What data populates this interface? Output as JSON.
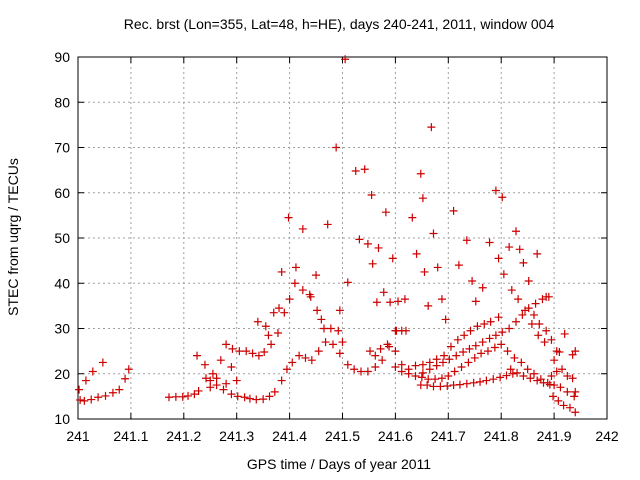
{
  "chart_data": {
    "type": "scatter",
    "title": "Rec. brst (Lon=355, Lat=48, h=HE), days 240-241, 2011, window 004",
    "xlabel": "GPS time / Days of year 2011",
    "ylabel": "STEC from uqrg / TECUs",
    "xlim": [
      241,
      242
    ],
    "ylim": [
      10,
      90
    ],
    "xticks": [
      "241",
      "241.1",
      "241.2",
      "241.3",
      "241.4",
      "241.5",
      "241.6",
      "241.7",
      "241.8",
      "241.9",
      "242"
    ],
    "yticks": [
      "10",
      "20",
      "30",
      "40",
      "50",
      "60",
      "70",
      "80",
      "90"
    ],
    "grid": true,
    "marker": "plus",
    "color": "#cc0000",
    "series": [
      {
        "points": [
          [
            241.002,
            16.5
          ],
          [
            241.004,
            14.2
          ],
          [
            241.012,
            14.0
          ],
          [
            241.015,
            18.5
          ],
          [
            241.025,
            14.3
          ],
          [
            241.028,
            20.5
          ],
          [
            241.038,
            14.8
          ],
          [
            241.047,
            22.5
          ],
          [
            241.052,
            15.1
          ],
          [
            241.066,
            15.8
          ],
          [
            241.078,
            16.5
          ],
          [
            241.089,
            18.9
          ],
          [
            241.096,
            21.0
          ],
          [
            241.172,
            14.8
          ],
          [
            241.185,
            14.9
          ],
          [
            241.198,
            14.9
          ],
          [
            241.208,
            15.1
          ],
          [
            241.22,
            15.5
          ],
          [
            241.225,
            24.0
          ],
          [
            241.228,
            16.2
          ],
          [
            241.24,
            22.0
          ],
          [
            241.25,
            18.5
          ],
          [
            241.255,
            20.0
          ],
          [
            241.262,
            17.5
          ],
          [
            241.27,
            23.0
          ],
          [
            241.28,
            17.8
          ],
          [
            241.29,
            21.5
          ],
          [
            241.3,
            18.5
          ],
          [
            241.242,
            19.0
          ],
          [
            241.25,
            17.0
          ],
          [
            241.262,
            19.0
          ],
          [
            241.275,
            16.5
          ],
          [
            241.29,
            15.5
          ],
          [
            241.302,
            15.0
          ],
          [
            241.315,
            14.8
          ],
          [
            241.325,
            14.5
          ],
          [
            241.337,
            14.3
          ],
          [
            241.35,
            14.4
          ],
          [
            241.362,
            15.0
          ],
          [
            241.372,
            16.0
          ],
          [
            241.385,
            18.5
          ],
          [
            241.395,
            21.0
          ],
          [
            241.405,
            22.5
          ],
          [
            241.418,
            24.0
          ],
          [
            241.43,
            23.5
          ],
          [
            241.442,
            23.0
          ],
          [
            241.455,
            25.0
          ],
          [
            241.468,
            27.0
          ],
          [
            241.482,
            26.5
          ],
          [
            241.495,
            24.5
          ],
          [
            241.51,
            22.0
          ],
          [
            241.522,
            21.0
          ],
          [
            241.535,
            20.5
          ],
          [
            241.548,
            20.5
          ],
          [
            241.562,
            21.5
          ],
          [
            241.575,
            23.0
          ],
          [
            241.588,
            26.0
          ],
          [
            241.6,
            29.5
          ],
          [
            241.28,
            26.5
          ],
          [
            241.292,
            25.5
          ],
          [
            241.305,
            25.0
          ],
          [
            241.318,
            25.0
          ],
          [
            241.33,
            24.5
          ],
          [
            241.342,
            24.0
          ],
          [
            241.352,
            24.8
          ],
          [
            241.365,
            26.5
          ],
          [
            241.378,
            29.0
          ],
          [
            241.39,
            33.5
          ],
          [
            241.4,
            36.5
          ],
          [
            241.41,
            40.0
          ],
          [
            241.425,
            38.5
          ],
          [
            241.438,
            37.5
          ],
          [
            241.452,
            34.0
          ],
          [
            241.465,
            30.0
          ],
          [
            241.478,
            30.0
          ],
          [
            241.492,
            29.5
          ],
          [
            241.5,
            27.0
          ],
          [
            241.34,
            31.5
          ],
          [
            241.355,
            30.5
          ],
          [
            241.36,
            28.5
          ],
          [
            241.37,
            33.5
          ],
          [
            241.38,
            34.5
          ],
          [
            241.385,
            42.5
          ],
          [
            241.398,
            54.5
          ],
          [
            241.412,
            43.5
          ],
          [
            241.425,
            52.0
          ],
          [
            241.44,
            37.0
          ],
          [
            241.45,
            41.8
          ],
          [
            241.46,
            32.0
          ],
          [
            241.472,
            53.0
          ],
          [
            241.488,
            70.0
          ],
          [
            241.495,
            34.0
          ],
          [
            241.505,
            89.5
          ],
          [
            241.51,
            40.2
          ],
          [
            241.525,
            64.8
          ],
          [
            241.532,
            49.7
          ],
          [
            241.542,
            65.2
          ],
          [
            241.548,
            48.7
          ],
          [
            241.555,
            59.5
          ],
          [
            241.557,
            44.3
          ],
          [
            241.565,
            35.8
          ],
          [
            241.568,
            47.8
          ],
          [
            241.578,
            38.0
          ],
          [
            241.582,
            55.7
          ],
          [
            241.59,
            35.8
          ],
          [
            241.595,
            45.5
          ],
          [
            241.602,
            29.5
          ],
          [
            241.605,
            36.0
          ],
          [
            241.612,
            29.5
          ],
          [
            241.618,
            36.5
          ],
          [
            241.62,
            29.5
          ],
          [
            241.552,
            25.0
          ],
          [
            241.562,
            24.0
          ],
          [
            241.572,
            25.5
          ],
          [
            241.585,
            26.5
          ],
          [
            241.6,
            25.0
          ],
          [
            241.612,
            22.0
          ],
          [
            241.625,
            21.0
          ],
          [
            241.638,
            21.8
          ],
          [
            241.652,
            22.0
          ],
          [
            241.665,
            22.5
          ],
          [
            241.678,
            23.2
          ],
          [
            241.692,
            24.0
          ],
          [
            241.705,
            26.0
          ],
          [
            241.718,
            27.5
          ],
          [
            241.73,
            28.5
          ],
          [
            241.742,
            29.5
          ],
          [
            241.755,
            30.5
          ],
          [
            241.768,
            31.0
          ],
          [
            241.78,
            31.5
          ],
          [
            241.795,
            32.5
          ],
          [
            241.6,
            21.5
          ],
          [
            241.612,
            20.5
          ],
          [
            241.625,
            20.0
          ],
          [
            241.638,
            19.5
          ],
          [
            241.65,
            19.2
          ],
          [
            241.662,
            18.8
          ],
          [
            241.675,
            18.8
          ],
          [
            241.688,
            19.0
          ],
          [
            241.7,
            19.5
          ],
          [
            241.712,
            20.5
          ],
          [
            241.725,
            21.5
          ],
          [
            241.738,
            22.5
          ],
          [
            241.75,
            23.5
          ],
          [
            241.762,
            24.5
          ],
          [
            241.775,
            25.0
          ],
          [
            241.788,
            25.8
          ],
          [
            241.8,
            26.5
          ],
          [
            241.632,
            54.5
          ],
          [
            241.64,
            46.5
          ],
          [
            241.648,
            64.2
          ],
          [
            241.652,
            58.8
          ],
          [
            241.655,
            42.5
          ],
          [
            241.662,
            35.0
          ],
          [
            241.668,
            74.5
          ],
          [
            241.672,
            51.0
          ],
          [
            241.68,
            43.5
          ],
          [
            241.688,
            36.5
          ],
          [
            241.695,
            32.0
          ],
          [
            241.71,
            56.0
          ],
          [
            241.72,
            44.0
          ],
          [
            241.735,
            49.5
          ],
          [
            241.745,
            40.5
          ],
          [
            241.752,
            36.0
          ],
          [
            241.765,
            39.0
          ],
          [
            241.778,
            49.0
          ],
          [
            241.79,
            60.5
          ],
          [
            241.795,
            45.5
          ],
          [
            241.802,
            59.0
          ],
          [
            241.805,
            42.0
          ],
          [
            241.815,
            48.0
          ],
          [
            241.828,
            51.5
          ],
          [
            241.835,
            47.5
          ],
          [
            241.842,
            44.5
          ],
          [
            241.852,
            40.5
          ],
          [
            241.868,
            46.5
          ],
          [
            241.885,
            37.0
          ],
          [
            241.648,
            17.5
          ],
          [
            241.66,
            17.5
          ],
          [
            241.672,
            17.2
          ],
          [
            241.685,
            17.2
          ],
          [
            241.698,
            17.3
          ],
          [
            241.71,
            17.5
          ],
          [
            241.722,
            17.6
          ],
          [
            241.735,
            17.8
          ],
          [
            241.748,
            18.0
          ],
          [
            241.76,
            18.2
          ],
          [
            241.772,
            18.5
          ],
          [
            241.785,
            18.8
          ],
          [
            241.798,
            19.2
          ],
          [
            241.81,
            19.6
          ],
          [
            241.822,
            20.0
          ],
          [
            241.652,
            20.2
          ],
          [
            241.665,
            21.0
          ],
          [
            241.678,
            21.8
          ],
          [
            241.69,
            22.5
          ],
          [
            241.702,
            23.2
          ],
          [
            241.715,
            24.0
          ],
          [
            241.728,
            24.8
          ],
          [
            241.74,
            25.5
          ],
          [
            241.752,
            26.2
          ],
          [
            241.765,
            27.0
          ],
          [
            241.778,
            27.8
          ],
          [
            241.79,
            28.5
          ],
          [
            241.802,
            29.2
          ],
          [
            241.815,
            30.0
          ],
          [
            241.828,
            31.5
          ],
          [
            241.84,
            33.0
          ],
          [
            241.852,
            34.5
          ],
          [
            241.865,
            35.5
          ],
          [
            241.878,
            36.5
          ],
          [
            241.89,
            37.0
          ],
          [
            241.812,
            25.0
          ],
          [
            241.825,
            23.5
          ],
          [
            241.838,
            22.5
          ],
          [
            241.85,
            21.0
          ],
          [
            241.862,
            20.0
          ],
          [
            241.875,
            18.8
          ],
          [
            241.888,
            18.0
          ],
          [
            241.9,
            17.5
          ],
          [
            241.912,
            17.0
          ],
          [
            241.925,
            16.0
          ],
          [
            241.938,
            15.0
          ],
          [
            241.818,
            21.0
          ],
          [
            241.83,
            20.2
          ],
          [
            241.842,
            19.5
          ],
          [
            241.855,
            19.0
          ],
          [
            241.868,
            18.5
          ],
          [
            241.88,
            18.0
          ],
          [
            241.892,
            17.6
          ],
          [
            241.898,
            15.0
          ],
          [
            241.908,
            14.0
          ],
          [
            241.918,
            13.0
          ],
          [
            241.93,
            12.5
          ],
          [
            241.94,
            11.5
          ],
          [
            241.9,
            23.0
          ],
          [
            241.91,
            24.8
          ],
          [
            241.92,
            28.8
          ],
          [
            241.935,
            24.2
          ],
          [
            241.94,
            25.0
          ],
          [
            241.895,
            19.5
          ],
          [
            241.905,
            20.5
          ],
          [
            241.915,
            21.0
          ],
          [
            241.925,
            19.5
          ],
          [
            241.935,
            19.0
          ],
          [
            241.94,
            16.0
          ],
          [
            241.862,
            33.0
          ],
          [
            241.872,
            31.0
          ],
          [
            241.885,
            29.5
          ],
          [
            241.895,
            27.5
          ],
          [
            241.905,
            25.0
          ],
          [
            241.82,
            38.5
          ],
          [
            241.832,
            36.5
          ],
          [
            241.845,
            34.0
          ],
          [
            241.858,
            31.0
          ],
          [
            241.87,
            28.5
          ],
          [
            241.882,
            27.0
          ]
        ]
      }
    ]
  }
}
